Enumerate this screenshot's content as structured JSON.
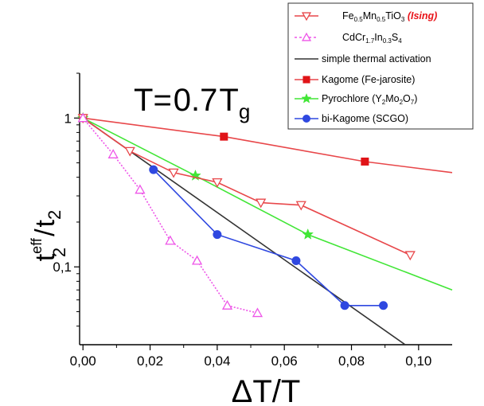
{
  "chart_data": {
    "type": "line",
    "annotation": {
      "main": "T",
      "eq": "=",
      "value": "0.7",
      "var": "T",
      "sub": "g"
    },
    "xlabel": {
      "main": "ΔT/T"
    },
    "ylabel": {
      "a": "t",
      "a_sub": "2",
      "a_sup": "eff",
      "slash": "/",
      "b": "t",
      "b_sub": "2"
    },
    "x_scale": "linear",
    "y_scale": "log",
    "xlim": [
      -0.001,
      0.11
    ],
    "ylim": [
      0.03,
      2.0
    ],
    "x_ticks": [
      0.0,
      0.02,
      0.04,
      0.06,
      0.08,
      0.1
    ],
    "x_tick_labels": [
      "0,00",
      "0,02",
      "0,04",
      "0,06",
      "0,08",
      "0,10"
    ],
    "y_ticks": [
      0.1,
      1
    ],
    "y_tick_labels": [
      "0,1",
      "1"
    ],
    "legend_position": "top-right",
    "series": [
      {
        "key": "femn",
        "legend_parts": [
          {
            "t": "Fe"
          },
          {
            "t": "0.5",
            "sub": true
          },
          {
            "t": "Mn"
          },
          {
            "t": "0.5",
            "sub": true
          },
          {
            "t": "TiO"
          },
          {
            "t": "3",
            "sub": true
          },
          {
            "t": " (Ising)",
            "color": "#e8141a",
            "italic": true,
            "bold": true
          }
        ],
        "color": "#e8474a",
        "marker": "triangle-down-open",
        "dash": "solid",
        "x": [
          0.0,
          0.014,
          0.027,
          0.04,
          0.053,
          0.065,
          0.0975
        ],
        "y": [
          1.0,
          0.6,
          0.43,
          0.37,
          0.27,
          0.26,
          0.12
        ]
      },
      {
        "key": "cdcr",
        "legend_parts": [
          {
            "t": "CdCr"
          },
          {
            "t": "1.7",
            "sub": true
          },
          {
            "t": "In"
          },
          {
            "t": "0.3",
            "sub": true
          },
          {
            "t": "S"
          },
          {
            "t": "4",
            "sub": true
          }
        ],
        "color": "#ee55e8",
        "marker": "triangle-up-open",
        "dash": "dotted",
        "x": [
          0.0,
          0.009,
          0.017,
          0.026,
          0.034,
          0.043,
          0.052
        ],
        "y": [
          1.0,
          0.57,
          0.33,
          0.15,
          0.11,
          0.055,
          0.049
        ]
      },
      {
        "key": "thermal",
        "legend_parts": [
          {
            "t": "simple thermal activation"
          }
        ],
        "color": "#333333",
        "marker": "none",
        "dash": "solid",
        "x": [
          0.0,
          0.096
        ],
        "y": [
          1.0,
          0.03
        ]
      },
      {
        "key": "kagome",
        "legend_parts": [
          {
            "t": "Kagome (Fe-jarosite)"
          }
        ],
        "color": "#e8474a",
        "marker": "square-filled",
        "dash": "solid",
        "x": [
          0.0,
          0.042,
          0.084,
          0.11
        ],
        "y": [
          1.0,
          0.75,
          0.51,
          0.43
        ],
        "marker_indices": [
          0,
          1,
          2
        ]
      },
      {
        "key": "pyrochlore",
        "legend_parts": [
          {
            "t": "Pyrochlore (Y"
          },
          {
            "t": "2",
            "sub": true
          },
          {
            "t": "Mo"
          },
          {
            "t": "2",
            "sub": true
          },
          {
            "t": "O"
          },
          {
            "t": "7",
            "sub": true
          },
          {
            "t": ")"
          }
        ],
        "color": "#41e636",
        "marker": "star-filled",
        "dash": "solid",
        "x": [
          0.0,
          0.0335,
          0.067,
          0.11
        ],
        "y": [
          1.0,
          0.41,
          0.165,
          0.07
        ],
        "marker_indices": [
          0,
          1,
          2
        ]
      },
      {
        "key": "bikagome",
        "legend_parts": [
          {
            "t": "bi-Kagome (SCGO)"
          }
        ],
        "color": "#2f48e0",
        "marker": "circle-filled",
        "dash": "solid",
        "x": [
          0.021,
          0.04,
          0.0635,
          0.078,
          0.0895
        ],
        "y": [
          0.45,
          0.165,
          0.11,
          0.055,
          0.055
        ]
      }
    ]
  }
}
